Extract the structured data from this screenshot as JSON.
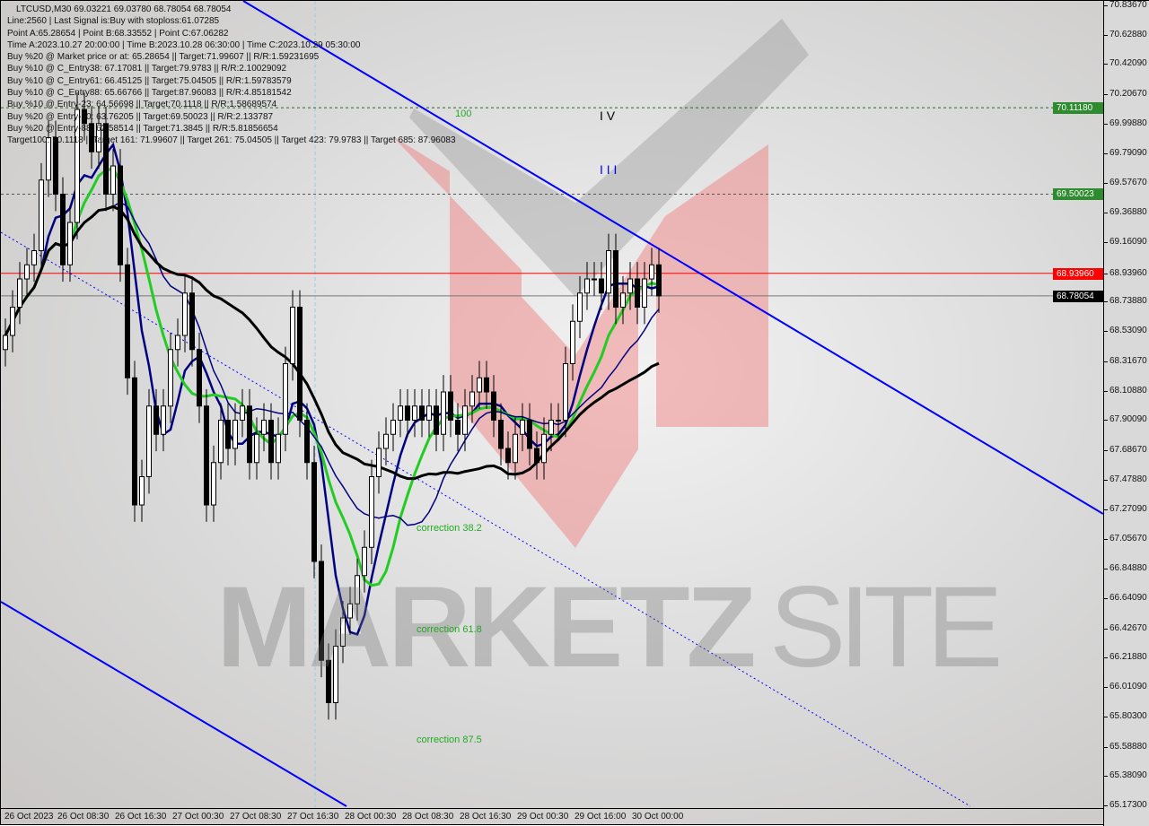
{
  "header": {
    "title": "LTCUSD,M30  69.03221 69.03780 68.78054 68.78054"
  },
  "info_lines": [
    "Line:2560 | Last Signal is:Buy with stoploss:61.07285",
    "Point A:65.28654 | Point B:68.33552 | Point C:67.06282",
    "Time A:2023.10.27 20:00:00 | Time B:2023.10.28 06:30:00 | Time C:2023.10.29 05:30:00",
    "Buy %20 @ Market price or at: 65.28654 || Target:71.99607 || R/R:1.59231695",
    "Buy %10 @ C_Entry38: 67.17081 || Target:79.9783 || R/R:2.10029092",
    "Buy %10 @ C_Entry61: 66.45125 || Target:75.04505 || R/R:1.59783579",
    "Buy %10 @ C_Entry88: 65.66766 || Target:87.96083 || R/R:4.85181542",
    "Buy %10 @ Entry-23: 64.56698 || Target:70.1118 || R/R:1.58689574",
    "Buy %20 @ Entry-50: 63.76205 || Target:69.50023 || R/R:2.133787",
    "Buy %20 @ Entry-88: 62.58514 || Target:71.3845 || R/R:5.81856654",
    "Target100: 70.1118 || Target 161: 71.99607 || Target 261: 75.04505 || Target 423: 79.9783 || Target 685: 87.96083"
  ],
  "annotations": {
    "level_100": "100",
    "wave_iv": "I V",
    "wave_iii": "I I I",
    "corr_382": "correction 38.2",
    "corr_618": "correction 61.8",
    "corr_875": "correction 87.5"
  },
  "watermark": "MARKETZ SITE",
  "price_tags": [
    {
      "value": "70.11180",
      "color": "#2e8b2e"
    },
    {
      "value": "69.50023",
      "color": "#2e8b2e"
    },
    {
      "value": "68.93960",
      "color": "#ff0000"
    },
    {
      "value": "68.78054",
      "color": "#000000"
    }
  ],
  "colors": {
    "up_candle": "#ffffff",
    "down_candle": "#000000",
    "trendline": "#0000ff",
    "ma_green": "#22cc22",
    "ma_blue": "#000080",
    "ma_black": "#000000",
    "resistance": "#ff0000"
  },
  "chart_data": {
    "type": "candlestick",
    "symbol": "LTCUSD",
    "timeframe": "M30",
    "ylim": [
      65.173,
      70.8367
    ],
    "y_ticks": [
      "70.83670",
      "70.62880",
      "70.42090",
      "70.20670",
      "69.99880",
      "69.79090",
      "69.57670",
      "69.36880",
      "69.16090",
      "68.93960",
      "68.73880",
      "68.53090",
      "68.31670",
      "68.10880",
      "67.90090",
      "67.68670",
      "67.47880",
      "67.27090",
      "67.05670",
      "66.84880",
      "66.64090",
      "66.42670",
      "66.21880",
      "66.01090",
      "65.80300",
      "65.58880",
      "65.38090",
      "65.17300"
    ],
    "x_ticks": [
      "26 Oct 2023",
      "26 Oct 08:30",
      "26 Oct 16:30",
      "27 Oct 00:30",
      "27 Oct 08:30",
      "27 Oct 16:30",
      "28 Oct 00:30",
      "28 Oct 08:30",
      "28 Oct 16:30",
      "29 Oct 00:30",
      "29 Oct 16:00",
      "30 Oct 00:00"
    ],
    "horizontal_levels": [
      70.1118,
      69.50023,
      68.9396,
      68.78054
    ],
    "closes": [
      68.5,
      68.7,
      68.9,
      69.0,
      69.1,
      69.6,
      69.9,
      69.5,
      69.0,
      69.3,
      70.1,
      70.0,
      69.8,
      70.0,
      69.5,
      69.7,
      69.0,
      68.2,
      67.3,
      67.5,
      68.0,
      67.8,
      68.0,
      68.4,
      68.5,
      68.8,
      68.4,
      68.0,
      67.3,
      67.6,
      67.9,
      67.7,
      67.9,
      68.0,
      67.6,
      67.8,
      67.9,
      67.6,
      67.8,
      68.3,
      68.7,
      67.9,
      67.6,
      66.9,
      66.2,
      65.9,
      66.3,
      66.5,
      66.6,
      66.8,
      67.0,
      67.5,
      67.7,
      67.8,
      67.9,
      68.0,
      67.9,
      68.0,
      67.9,
      68.0,
      67.8,
      68.1,
      67.9,
      67.8,
      68.0,
      68.1,
      68.2,
      68.1,
      67.9,
      67.7,
      67.6,
      67.8,
      67.9,
      67.7,
      67.6,
      67.8,
      67.9,
      67.9,
      68.3,
      68.6,
      68.8,
      68.9,
      68.9,
      68.8,
      69.1,
      68.7,
      68.8,
      68.9,
      68.7,
      68.9,
      69.0,
      68.78
    ]
  }
}
